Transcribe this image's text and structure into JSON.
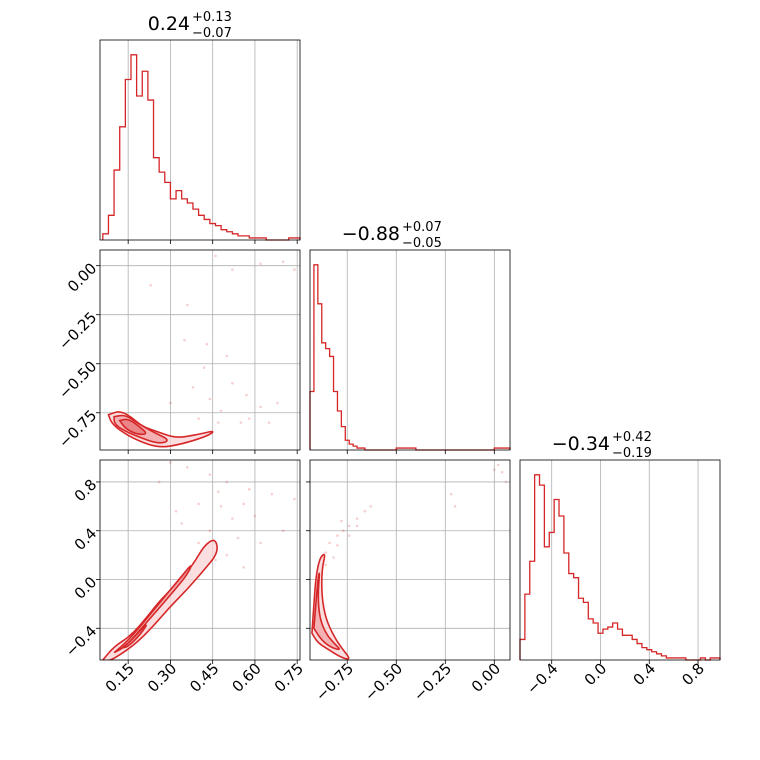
{
  "chart_data": {
    "type": "corner",
    "color": "#d62728",
    "parameters": [
      {
        "range": [
          0.05,
          0.76
        ],
        "ticks": [
          0.15,
          0.3,
          0.45,
          0.6,
          0.75
        ],
        "tick_labels": [
          "0.15",
          "0.30",
          "0.45",
          "0.60",
          "0.75"
        ]
      },
      {
        "range": [
          -0.94,
          0.08
        ],
        "ticks": [
          -0.75,
          -0.5,
          -0.25,
          0.0
        ],
        "tick_labels": [
          "−0.75",
          "−0.50",
          "−0.25",
          "0.00"
        ]
      },
      {
        "range": [
          -0.66,
          0.98
        ],
        "ticks": [
          -0.4,
          0.0,
          0.4,
          0.8
        ],
        "tick_labels": [
          "−0.4",
          "0.0",
          "0.4",
          "0.8"
        ]
      }
    ],
    "titles": [
      {
        "value": "0.24",
        "plus": "+0.13",
        "minus": "−0.07"
      },
      {
        "value": "−0.88",
        "plus": "+0.07",
        "minus": "−0.05"
      },
      {
        "value": "−0.34",
        "plus": "+0.42",
        "minus": "−0.19"
      }
    ],
    "histograms": [
      {
        "bins": [
          0.06,
          0.08,
          0.1,
          0.12,
          0.14,
          0.16,
          0.18,
          0.2,
          0.22,
          0.24,
          0.26,
          0.28,
          0.3,
          0.32,
          0.34,
          0.36,
          0.38,
          0.4,
          0.42,
          0.44,
          0.46,
          0.48,
          0.5,
          0.52,
          0.54,
          0.56,
          0.58,
          0.6,
          0.62,
          0.64,
          0.66,
          0.68,
          0.7,
          0.72,
          0.74,
          0.76
        ],
        "counts": [
          3,
          12,
          34,
          55,
          78,
          90,
          70,
          82,
          68,
          40,
          33,
          28,
          20,
          24,
          20,
          18,
          15,
          12,
          10,
          8,
          7,
          5,
          4,
          3,
          2,
          2,
          1,
          1,
          1,
          0,
          0,
          0,
          0,
          1,
          1
        ]
      },
      {
        "bins": [
          -0.94,
          -0.92,
          -0.9,
          -0.88,
          -0.86,
          -0.84,
          -0.82,
          -0.8,
          -0.78,
          -0.76,
          -0.74,
          -0.72,
          -0.7,
          -0.68,
          -0.66,
          -0.64,
          -0.62,
          -0.6,
          -0.5,
          -0.4,
          -0.3,
          -0.2,
          -0.1,
          0.0,
          0.08
        ],
        "counts": [
          30,
          95,
          75,
          55,
          52,
          48,
          30,
          20,
          12,
          5,
          3,
          2,
          1,
          1,
          0,
          0,
          0,
          0,
          1,
          0,
          0,
          0,
          0,
          1
        ]
      },
      {
        "bins": [
          -0.66,
          -0.62,
          -0.58,
          -0.54,
          -0.5,
          -0.46,
          -0.42,
          -0.38,
          -0.34,
          -0.3,
          -0.26,
          -0.22,
          -0.18,
          -0.14,
          -0.1,
          -0.06,
          -0.02,
          0.02,
          0.06,
          0.1,
          0.14,
          0.18,
          0.22,
          0.26,
          0.3,
          0.34,
          0.38,
          0.42,
          0.46,
          0.5,
          0.54,
          0.58,
          0.62,
          0.66,
          0.7,
          0.74,
          0.78,
          0.82,
          0.86,
          0.9,
          0.94,
          0.98
        ],
        "counts": [
          10,
          32,
          48,
          90,
          85,
          55,
          62,
          78,
          70,
          52,
          42,
          40,
          30,
          28,
          20,
          18,
          13,
          15,
          16,
          18,
          15,
          12,
          12,
          10,
          8,
          6,
          5,
          4,
          3,
          2,
          1,
          1,
          1,
          1,
          0,
          0,
          0,
          1,
          0,
          1,
          1
        ]
      }
    ],
    "contour_sets": {
      "1_0": [
        [
          [
            0.08,
            -0.76
          ],
          [
            0.12,
            -0.74
          ],
          [
            0.16,
            -0.77
          ],
          [
            0.2,
            -0.82
          ],
          [
            0.26,
            -0.85
          ],
          [
            0.32,
            -0.88
          ],
          [
            0.4,
            -0.86
          ],
          [
            0.46,
            -0.84
          ],
          [
            0.43,
            -0.87
          ],
          [
            0.34,
            -0.91
          ],
          [
            0.26,
            -0.93
          ],
          [
            0.18,
            -0.89
          ],
          [
            0.12,
            -0.84
          ],
          [
            0.09,
            -0.8
          ]
        ],
        [
          [
            0.1,
            -0.77
          ],
          [
            0.14,
            -0.76
          ],
          [
            0.18,
            -0.8
          ],
          [
            0.24,
            -0.85
          ],
          [
            0.3,
            -0.89
          ],
          [
            0.26,
            -0.91
          ],
          [
            0.18,
            -0.87
          ],
          [
            0.12,
            -0.83
          ],
          [
            0.1,
            -0.8
          ]
        ],
        [
          [
            0.12,
            -0.79
          ],
          [
            0.15,
            -0.78
          ],
          [
            0.19,
            -0.82
          ],
          [
            0.22,
            -0.86
          ],
          [
            0.18,
            -0.86
          ],
          [
            0.14,
            -0.83
          ]
        ]
      ],
      "2_0": [
        [
          [
            0.06,
            -0.66
          ],
          [
            0.1,
            -0.55
          ],
          [
            0.16,
            -0.46
          ],
          [
            0.22,
            -0.3
          ],
          [
            0.26,
            -0.18
          ],
          [
            0.32,
            -0.04
          ],
          [
            0.38,
            0.12
          ],
          [
            0.42,
            0.28
          ],
          [
            0.46,
            0.34
          ],
          [
            0.47,
            0.22
          ],
          [
            0.42,
            0.08
          ],
          [
            0.36,
            -0.08
          ],
          [
            0.3,
            -0.22
          ],
          [
            0.24,
            -0.38
          ],
          [
            0.18,
            -0.52
          ],
          [
            0.12,
            -0.62
          ],
          [
            0.08,
            -0.67
          ]
        ],
        [
          [
            0.1,
            -0.6
          ],
          [
            0.14,
            -0.52
          ],
          [
            0.18,
            -0.42
          ],
          [
            0.23,
            -0.28
          ],
          [
            0.28,
            -0.14
          ],
          [
            0.33,
            0.0
          ],
          [
            0.38,
            0.14
          ],
          [
            0.36,
            0.04
          ],
          [
            0.31,
            -0.1
          ],
          [
            0.25,
            -0.26
          ],
          [
            0.19,
            -0.42
          ],
          [
            0.14,
            -0.55
          ]
        ],
        [
          [
            0.13,
            -0.56
          ],
          [
            0.16,
            -0.5
          ],
          [
            0.2,
            -0.4
          ],
          [
            0.22,
            -0.36
          ],
          [
            0.19,
            -0.46
          ],
          [
            0.15,
            -0.55
          ]
        ]
      ],
      "2_1": [
        [
          [
            -0.93,
            -0.44
          ],
          [
            -0.92,
            -0.2
          ],
          [
            -0.91,
            0.02
          ],
          [
            -0.89,
            0.18
          ],
          [
            -0.86,
            0.22
          ],
          [
            -0.88,
            0.08
          ],
          [
            -0.88,
            -0.14
          ],
          [
            -0.86,
            -0.32
          ],
          [
            -0.82,
            -0.46
          ],
          [
            -0.78,
            -0.56
          ],
          [
            -0.73,
            -0.66
          ],
          [
            -0.78,
            -0.64
          ],
          [
            -0.84,
            -0.58
          ],
          [
            -0.9,
            -0.52
          ]
        ],
        [
          [
            -0.92,
            -0.4
          ],
          [
            -0.91,
            -0.2
          ],
          [
            -0.9,
            0.0
          ],
          [
            -0.89,
            0.08
          ],
          [
            -0.9,
            -0.14
          ],
          [
            -0.89,
            -0.32
          ],
          [
            -0.86,
            -0.44
          ],
          [
            -0.82,
            -0.52
          ],
          [
            -0.78,
            -0.58
          ],
          [
            -0.83,
            -0.56
          ],
          [
            -0.88,
            -0.5
          ]
        ]
      ]
    },
    "scatter": {
      "1_0": [
        [
          0.46,
          0.05
        ],
        [
          0.52,
          -0.02
        ],
        [
          0.62,
          0.01
        ],
        [
          0.7,
          0.02
        ],
        [
          0.35,
          -0.38
        ],
        [
          0.42,
          -0.52
        ],
        [
          0.5,
          -0.46
        ],
        [
          0.57,
          -0.66
        ],
        [
          0.62,
          -0.72
        ],
        [
          0.68,
          -0.7
        ],
        [
          0.55,
          -0.8
        ],
        [
          0.48,
          -0.74
        ],
        [
          0.44,
          -0.68
        ],
        [
          0.38,
          -0.62
        ],
        [
          0.3,
          -0.7
        ],
        [
          0.58,
          -0.78
        ],
        [
          0.65,
          -0.8
        ],
        [
          0.52,
          -0.6
        ],
        [
          0.47,
          -0.8
        ],
        [
          0.4,
          -0.78
        ],
        [
          0.74,
          -0.02
        ],
        [
          0.43,
          -0.4
        ],
        [
          0.23,
          -0.1
        ],
        [
          0.36,
          -0.2
        ]
      ],
      "2_0": [
        [
          0.3,
          0.96
        ],
        [
          0.36,
          0.92
        ],
        [
          0.44,
          0.86
        ],
        [
          0.5,
          0.8
        ],
        [
          0.58,
          0.74
        ],
        [
          0.66,
          0.7
        ],
        [
          0.74,
          0.66
        ],
        [
          0.48,
          0.6
        ],
        [
          0.52,
          0.5
        ],
        [
          0.4,
          0.62
        ],
        [
          0.44,
          0.4
        ],
        [
          0.54,
          0.34
        ],
        [
          0.5,
          0.2
        ],
        [
          0.56,
          0.1
        ],
        [
          0.62,
          0.3
        ],
        [
          0.4,
          0.3
        ],
        [
          0.34,
          0.46
        ],
        [
          0.6,
          0.52
        ],
        [
          0.7,
          0.4
        ],
        [
          0.47,
          0.72
        ],
        [
          0.26,
          0.8
        ],
        [
          0.32,
          0.56
        ],
        [
          0.56,
          0.62
        ],
        [
          0.46,
          0.16
        ]
      ],
      "2_1": [
        [
          -0.86,
          0.22
        ],
        [
          -0.84,
          0.3
        ],
        [
          -0.8,
          0.36
        ],
        [
          -0.77,
          0.4
        ],
        [
          -0.74,
          0.44
        ],
        [
          -0.7,
          0.5
        ],
        [
          -0.66,
          0.56
        ],
        [
          -0.8,
          0.28
        ],
        [
          -0.74,
          0.36
        ],
        [
          -0.7,
          0.44
        ],
        [
          -0.78,
          0.48
        ],
        [
          -0.63,
          0.6
        ],
        [
          -0.2,
          0.6
        ],
        [
          -0.22,
          0.7
        ],
        [
          0.0,
          0.9
        ],
        [
          0.02,
          0.94
        ],
        [
          0.04,
          0.88
        ],
        [
          0.06,
          0.8
        ],
        [
          -0.86,
          0.12
        ],
        [
          -0.82,
          0.18
        ]
      ]
    }
  }
}
